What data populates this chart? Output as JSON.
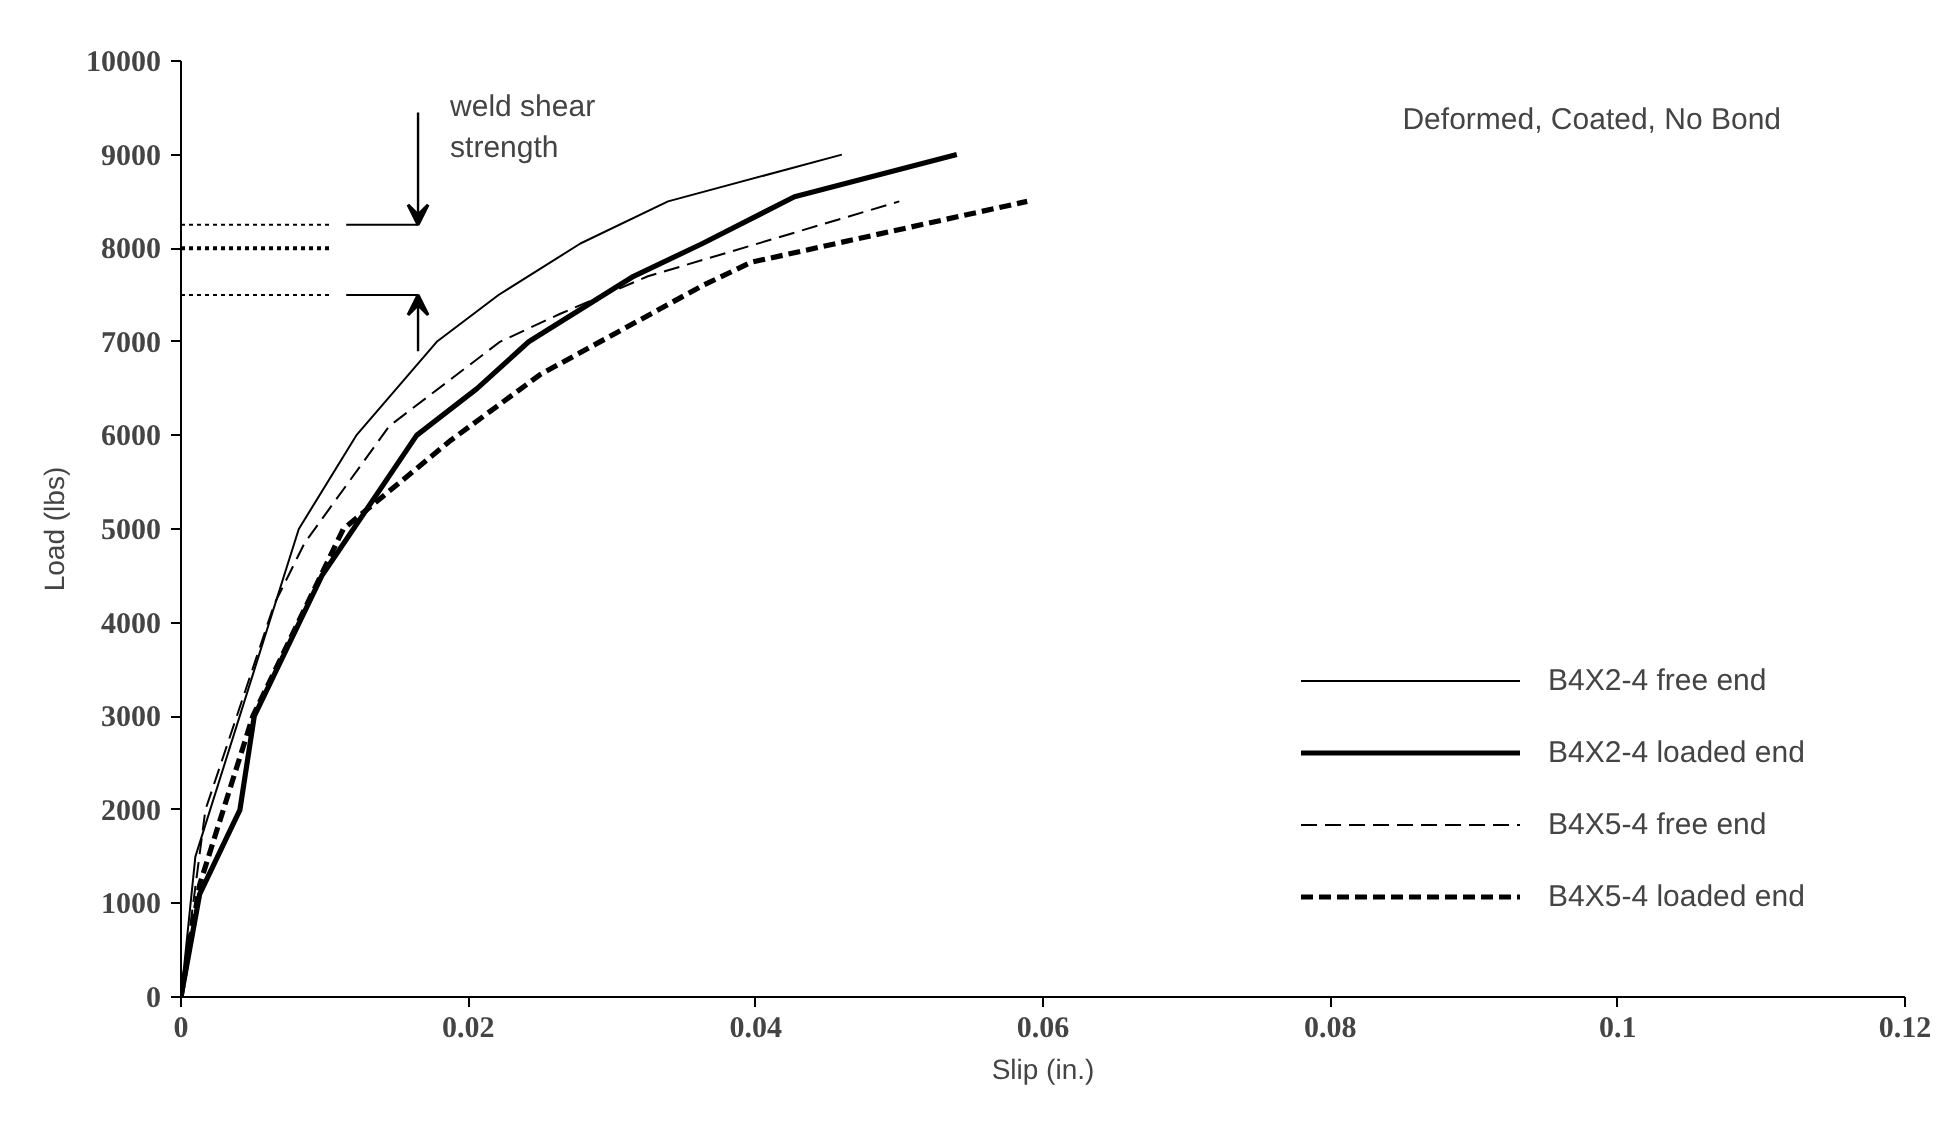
{
  "chart_data": {
    "type": "line",
    "title": "Deformed, Coated, No Bond",
    "xlabel": "Slip (in.)",
    "ylabel": "Load (lbs)",
    "xlim": [
      0,
      0.12
    ],
    "ylim": [
      0,
      10000
    ],
    "xticks": [
      0,
      0.02,
      0.04,
      0.06,
      0.08,
      0.1,
      0.12
    ],
    "yticks": [
      0,
      1000,
      2000,
      3000,
      4000,
      5000,
      6000,
      7000,
      8000,
      9000,
      10000
    ],
    "grid": false,
    "legend": "right",
    "marker": "none",
    "annotations": [
      {
        "text": "weld shear strength",
        "x": 0.0165,
        "y": 8250
      }
    ],
    "series": [
      {
        "name": "B4X2-4 free end",
        "color": "#000000",
        "line_style": "solid",
        "x": [
          0,
          0.001,
          0.0082,
          0.0122,
          0.0178,
          0.0221,
          0.0278,
          0.0339,
          0.046
        ],
        "values": [
          0,
          1500,
          5000,
          6000,
          7000,
          7500,
          8050,
          8500,
          9000
        ]
      },
      {
        "name": "B4X2-4 loaded end",
        "color": "#000000",
        "line_style": "solid",
        "x": [
          0,
          0.0013,
          0.0041,
          0.0051,
          0.0098,
          0.0164,
          0.0206,
          0.0242,
          0.0315,
          0.0363,
          0.0427,
          0.054
        ],
        "values": [
          0,
          1100,
          2000,
          3000,
          4500,
          6000,
          6500,
          7000,
          7700,
          8050,
          8550,
          9000
        ]
      },
      {
        "name": "B4X5-4 free end",
        "color": "#000000",
        "line_style": "dashed",
        "x": [
          0,
          0.0017,
          0.0065,
          0.0086,
          0.0145,
          0.0222,
          0.0264,
          0.0325,
          0.05
        ],
        "values": [
          0,
          2000,
          4200,
          4850,
          6100,
          7000,
          7300,
          7700,
          8500
        ]
      },
      {
        "name": "B4X5-4 loaded end",
        "color": "#000000",
        "line_style": "dashed",
        "x": [
          0,
          0.0013,
          0.005,
          0.0113,
          0.0188,
          0.025,
          0.0363,
          0.0397,
          0.0515,
          0.0589
        ],
        "values": [
          0,
          1200,
          3000,
          5000,
          5950,
          6650,
          7600,
          7850,
          8250,
          8500
        ]
      },
      {
        "color": "#000000",
        "line_style": "dotted",
        "x": [
          0,
          0.0105
        ],
        "values": [
          8250,
          8250
        ]
      },
      {
        "color": "#000000",
        "line_style": "dotted",
        "x": [
          0,
          0.0105
        ],
        "values": [
          8000,
          8000
        ]
      },
      {
        "color": "#000000",
        "line_style": "dotted",
        "x": [
          0,
          0.0105
        ],
        "values": [
          7500,
          7500
        ]
      },
      {
        "color": "#000000",
        "line_style": "solid",
        "x": [
          0.0115,
          0.0165
        ],
        "values": [
          8250,
          8250
        ]
      },
      {
        "color": "#000000",
        "line_style": "solid",
        "x": [
          0.0115,
          0.0165
        ],
        "values": [
          7500,
          7500
        ]
      }
    ]
  }
}
